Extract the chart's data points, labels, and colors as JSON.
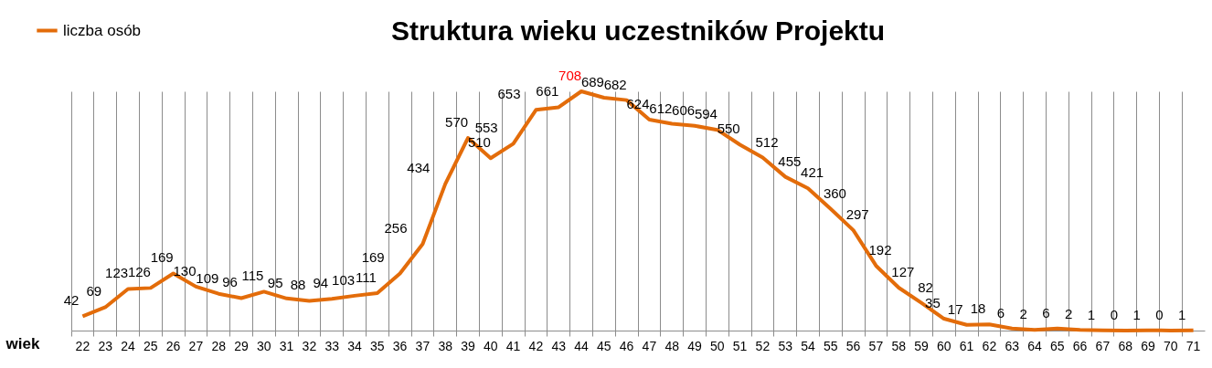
{
  "chart_data": {
    "type": "line",
    "title": "Struktura wieku uczestników Projektu",
    "xlabel": "wiek",
    "categories": [
      "22",
      "23",
      "24",
      "25",
      "26",
      "27",
      "28",
      "29",
      "30",
      "31",
      "32",
      "33",
      "34",
      "35",
      "36",
      "37",
      "38",
      "39",
      "40",
      "41",
      "42",
      "43",
      "44",
      "45",
      "46",
      "47",
      "48",
      "49",
      "50",
      "51",
      "52",
      "53",
      "54",
      "55",
      "56",
      "57",
      "58",
      "59",
      "60",
      "61",
      "62",
      "63",
      "64",
      "65",
      "66",
      "67",
      "68",
      "69",
      "70",
      "71"
    ],
    "series": [
      {
        "name": "liczba osób",
        "color": "#e36c0a",
        "values": [
          42,
          69,
          123,
          126,
          169,
          130,
          109,
          96,
          115,
          95,
          88,
          94,
          103,
          111,
          169,
          256,
          434,
          570,
          510,
          553,
          653,
          661,
          708,
          689,
          682,
          624,
          612,
          606,
          594,
          550,
          512,
          455,
          421,
          360,
          297,
          192,
          127,
          82,
          35,
          17,
          18,
          6,
          2,
          6,
          2,
          1,
          0,
          1,
          0,
          1
        ]
      }
    ],
    "data_labels": true,
    "grid": "x",
    "legend": "top left",
    "marker": "none",
    "line_style": "solid"
  }
}
